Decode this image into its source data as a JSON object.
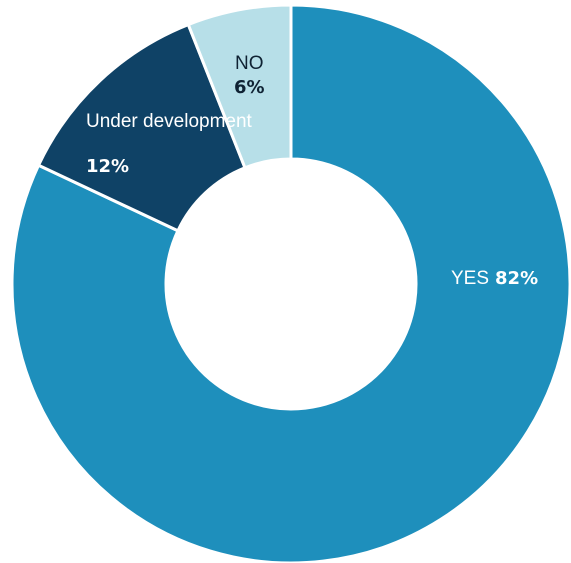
{
  "chart_data": {
    "type": "pie",
    "donut": true,
    "slices": [
      {
        "label": "YES",
        "value": 82,
        "value_label": "82%",
        "color": "#1e8fbc",
        "label_color": "#ffffff"
      },
      {
        "label": "Under development",
        "value": 12,
        "value_label": "12%",
        "color": "#0f4266",
        "label_color": "#ffffff"
      },
      {
        "label": "NO",
        "value": 6,
        "value_label": "6%",
        "color": "#b7dfe8",
        "label_color": "#0f2233"
      }
    ]
  }
}
